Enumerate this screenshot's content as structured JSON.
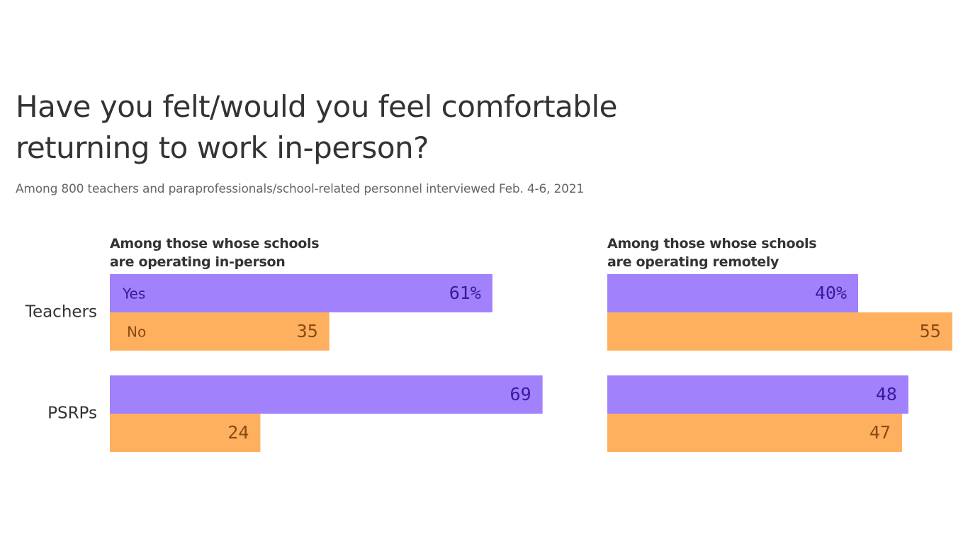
{
  "chart_data": {
    "type": "bar",
    "orientation": "horizontal",
    "title": "Have you felt/would you feel comfortable returning to work in-person?",
    "subtitle": "Among 800 teachers and paraprofessionals/school-related personnel interviewed Feb. 4-6, 2021",
    "categories": [
      "Teachers",
      "PSRPs"
    ],
    "panels": [
      {
        "title": "Among those whose schools are operating in-person",
        "series": [
          {
            "name": "Yes",
            "color": "#a281fc",
            "values": [
              61,
              69
            ],
            "value_labels": [
              "61%",
              "69"
            ]
          },
          {
            "name": "No",
            "color": "#ffb05f",
            "values": [
              35,
              24
            ],
            "value_labels": [
              "35",
              "24"
            ]
          }
        ]
      },
      {
        "title": "Among those whose schools are operating remotely",
        "series": [
          {
            "color": "#a281fc",
            "values": [
              40,
              48
            ],
            "value_labels": [
              "40%",
              "48"
            ]
          },
          {
            "color": "#ffb05f",
            "values": [
              55,
              47
            ],
            "value_labels": [
              "55",
              "47"
            ]
          }
        ]
      }
    ]
  }
}
